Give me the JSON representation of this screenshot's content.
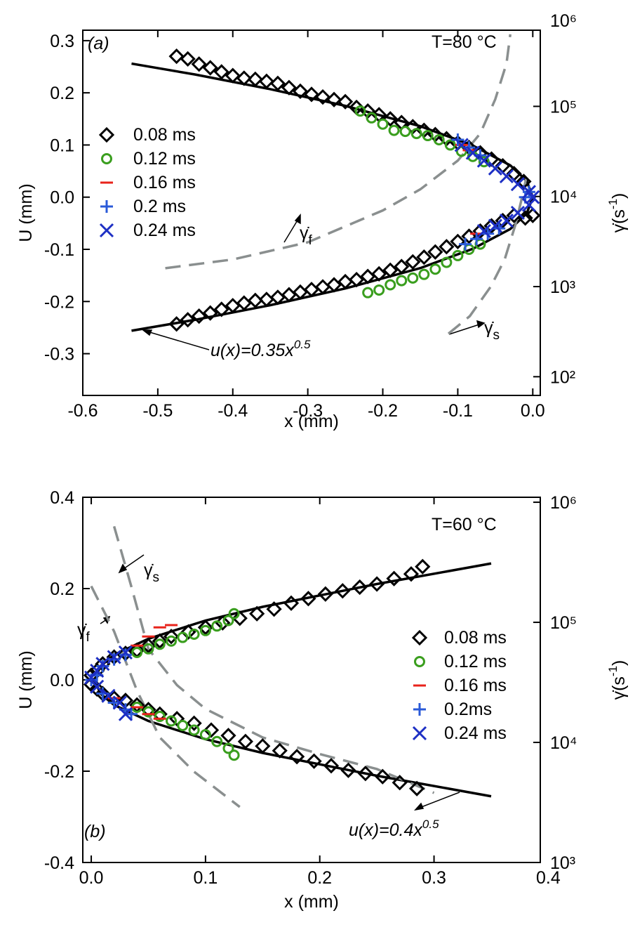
{
  "chart_data": [
    {
      "type": "scatter",
      "xlabel": "x (mm)",
      "ylabel": "U (mm)",
      "y2label": {
        "base": "γ̇(s",
        "sup": "-1",
        "tail": ")"
      },
      "xlim": [
        -0.6,
        0.01
      ],
      "ylim": [
        -0.38,
        0.32
      ],
      "y2lim": [
        62,
        700000
      ],
      "y2log": true,
      "legend": "upper left",
      "xticks": [
        -0.6,
        -0.5,
        -0.4,
        -0.3,
        -0.2,
        -0.1,
        {
          "value": 0,
          "label": "0.0"
        }
      ],
      "yticks": [
        -0.3,
        -0.2,
        -0.1,
        {
          "value": 0,
          "label": "0.0"
        },
        0.1,
        0.2,
        0.3
      ],
      "y2ticks": [
        {
          "value": 100,
          "label": "10²"
        },
        {
          "value": 1000,
          "label": "10³"
        },
        {
          "value": 10000,
          "label": "10⁴"
        },
        {
          "value": 100000,
          "label": "10⁵"
        },
        {
          "value": 1000000,
          "label": "10⁶"
        }
      ],
      "annotations": [
        {
          "base": "(a)"
        },
        {
          "base": "T=80 °C"
        },
        {
          "base": "u(x)=0.35x",
          "sup": "0.5"
        },
        {
          "base": "γ̇",
          "sub": "f"
        },
        {
          "base": "γ̇",
          "sub": "s"
        }
      ],
      "series": [
        {
          "name": "0.08 ms",
          "color": "#000000",
          "marker": "diamond",
          "x": [
            -0.475,
            -0.46,
            -0.445,
            -0.43,
            -0.415,
            -0.4,
            -0.385,
            -0.37,
            -0.355,
            -0.34,
            -0.325,
            -0.31,
            -0.295,
            -0.28,
            -0.265,
            -0.25,
            -0.235,
            -0.22,
            -0.205,
            -0.19,
            -0.175,
            -0.16,
            -0.145,
            -0.13,
            -0.115,
            -0.1,
            -0.085,
            -0.07,
            -0.055,
            -0.04,
            -0.025,
            -0.012,
            -0.475,
            -0.46,
            -0.445,
            -0.43,
            -0.415,
            -0.4,
            -0.385,
            -0.37,
            -0.355,
            -0.34,
            -0.325,
            -0.31,
            -0.295,
            -0.28,
            -0.265,
            -0.25,
            -0.235,
            -0.22,
            -0.205,
            -0.19,
            -0.175,
            -0.16,
            -0.145,
            -0.13,
            -0.115,
            -0.1,
            -0.085,
            -0.07,
            -0.055,
            -0.04,
            -0.025,
            -0.01,
            0
          ],
          "y": [
            0.27,
            0.265,
            0.255,
            0.248,
            0.24,
            0.233,
            0.228,
            0.226,
            0.222,
            0.218,
            0.21,
            0.203,
            0.197,
            0.192,
            0.187,
            0.183,
            0.172,
            0.165,
            0.158,
            0.15,
            0.143,
            0.135,
            0.128,
            0.12,
            0.112,
            0.104,
            0.095,
            0.085,
            0.073,
            0.06,
            0.045,
            0.03,
            -0.243,
            -0.235,
            -0.228,
            -0.222,
            -0.215,
            -0.208,
            -0.203,
            -0.198,
            -0.196,
            -0.192,
            -0.187,
            -0.182,
            -0.177,
            -0.172,
            -0.168,
            -0.162,
            -0.158,
            -0.152,
            -0.147,
            -0.14,
            -0.133,
            -0.124,
            -0.115,
            -0.105,
            -0.095,
            -0.085,
            -0.075,
            -0.065,
            -0.055,
            -0.045,
            -0.035,
            -0.04,
            -0.035
          ]
        },
        {
          "name": "0.12 ms",
          "color": "#3a9e1e",
          "marker": "circle",
          "x": [
            -0.23,
            -0.215,
            -0.2,
            -0.185,
            -0.17,
            -0.155,
            -0.14,
            -0.125,
            -0.11,
            -0.095,
            -0.08,
            -0.065,
            -0.22,
            -0.205,
            -0.19,
            -0.175,
            -0.16,
            -0.145,
            -0.13,
            -0.115,
            -0.1,
            -0.085,
            -0.07
          ],
          "y": [
            0.165,
            0.152,
            0.14,
            0.128,
            0.126,
            0.122,
            0.118,
            0.11,
            0.1,
            0.088,
            0.078,
            0.068,
            -0.183,
            -0.178,
            -0.168,
            -0.16,
            -0.155,
            -0.148,
            -0.138,
            -0.125,
            -0.112,
            -0.1,
            -0.09
          ]
        },
        {
          "name": "0.16 ms",
          "color": "#e8231b",
          "marker": "dash",
          "x": [
            -0.095,
            -0.085,
            -0.075
          ],
          "y": [
            0.1,
            0.09,
            -0.07
          ]
        },
        {
          "name": "0.2 ms",
          "color": "#2a5ad8",
          "marker": "plus",
          "x": [
            -0.1,
            -0.085,
            -0.07,
            -0.09,
            -0.075,
            -0.06,
            -0.045,
            -0.01,
            -0.005
          ],
          "y": [
            0.11,
            0.095,
            0.08,
            -0.09,
            -0.08,
            -0.07,
            -0.06,
            0,
            0.01
          ]
        },
        {
          "name": "0.24 ms",
          "color": "#1d2fc4",
          "marker": "x",
          "x": [
            -0.095,
            -0.08,
            -0.065,
            -0.05,
            -0.035,
            -0.02,
            -0.005,
            0,
            -0.005,
            -0.02,
            -0.035,
            -0.05,
            -0.065
          ],
          "y": [
            0.1,
            0.085,
            0.07,
            0.055,
            0.04,
            0.025,
            0.01,
            0,
            -0.015,
            -0.03,
            -0.045,
            -0.055,
            -0.065
          ]
        }
      ],
      "curves": [
        {
          "color": "#000000",
          "dashed": false,
          "x": [
            -0.535,
            -0.45,
            -0.35,
            -0.25,
            -0.15,
            -0.08,
            -0.03,
            -0.008,
            0,
            -0.008,
            -0.03,
            -0.08,
            -0.15,
            -0.25,
            -0.35,
            -0.45,
            -0.535
          ],
          "y": [
            0.256,
            0.235,
            0.207,
            0.175,
            0.136,
            0.099,
            0.061,
            0.031,
            0,
            -0.031,
            -0.061,
            -0.099,
            -0.136,
            -0.175,
            -0.207,
            -0.235,
            -0.256
          ]
        },
        {
          "color": "#8a8f8f",
          "dashed": true,
          "axis": "y2",
          "x": [
            -0.49,
            -0.4,
            -0.3,
            -0.2,
            -0.15,
            -0.1,
            -0.07,
            -0.05,
            -0.035,
            -0.03
          ],
          "y": [
            1600,
            2000,
            3100,
            7000,
            12000,
            25000,
            50000,
            120000,
            300000,
            630000
          ]
        },
        {
          "color": "#8a8f8f",
          "dashed": true,
          "axis": "y2",
          "x": [
            -0.1125,
            -0.084,
            -0.056,
            -0.0375,
            -0.023,
            -0.014,
            -0.009
          ],
          "y": [
            300,
            470,
            1000,
            2000,
            4900,
            10000,
            15700
          ]
        }
      ]
    },
    {
      "type": "scatter",
      "xlabel": "x (mm)",
      "ylabel": "U (mm)",
      "y2label": {
        "base": "γ̇(s",
        "sup": "-1",
        "tail": ")"
      },
      "xlim": [
        -0.0074,
        0.393
      ],
      "ylim": [
        -0.4,
        0.4
      ],
      "y2lim": [
        1000,
        1100000
      ],
      "y2log": true,
      "legend": "center right",
      "xticks": [
        {
          "value": 0,
          "label": "0.0"
        },
        0.1,
        0.2,
        0.3,
        0.4
      ],
      "yticks": [
        -0.4,
        -0.2,
        {
          "value": 0,
          "label": "0.0"
        },
        0.2,
        0.4
      ],
      "y2ticks": [
        {
          "value": 1000,
          "label": "10³"
        },
        {
          "value": 10000,
          "label": "10⁴"
        },
        {
          "value": 100000,
          "label": "10⁵"
        },
        {
          "value": 1000000,
          "label": "10⁶"
        }
      ],
      "annotations": [
        {
          "base": "(b)"
        },
        {
          "base": "T=60 °C"
        },
        {
          "base": "u(x)=0.4x",
          "sup": "0.5"
        },
        {
          "base": "γ̇",
          "sub": "s"
        },
        {
          "base": "γ̇",
          "sub": "f"
        }
      ],
      "series": [
        {
          "name": "0.08 ms",
          "color": "#000000",
          "marker": "diamond",
          "x": [
            0,
            0.005,
            0.01,
            0.02,
            0.03,
            0.04,
            0.05,
            0.06,
            0.07,
            0.085,
            0.1,
            0.115,
            0.13,
            0.145,
            0.16,
            0.175,
            0.19,
            0.205,
            0.22,
            0.235,
            0.25,
            0.265,
            0.28,
            0.29,
            0,
            0.005,
            0.01,
            0.02,
            0.03,
            0.04,
            0.05,
            0.06,
            0.075,
            0.09,
            0.105,
            0.12,
            0.135,
            0.15,
            0.165,
            0.18,
            0.195,
            0.21,
            0.225,
            0.24,
            0.255,
            0.27,
            0.285
          ],
          "y": [
            0.01,
            0.02,
            0.035,
            0.05,
            0.058,
            0.065,
            0.075,
            0.085,
            0.095,
            0.105,
            0.115,
            0.125,
            0.135,
            0.145,
            0.155,
            0.168,
            0.178,
            0.188,
            0.195,
            0.203,
            0.21,
            0.222,
            0.232,
            0.248,
            -0.01,
            -0.02,
            -0.03,
            -0.04,
            -0.045,
            -0.055,
            -0.065,
            -0.075,
            -0.085,
            -0.095,
            -0.11,
            -0.122,
            -0.135,
            -0.145,
            -0.155,
            -0.168,
            -0.178,
            -0.188,
            -0.198,
            -0.205,
            -0.212,
            -0.225,
            -0.238
          ]
        },
        {
          "name": "0.12 ms",
          "color": "#3a9e1e",
          "marker": "circle",
          "x": [
            0.04,
            0.05,
            0.06,
            0.07,
            0.08,
            0.09,
            0.1,
            0.11,
            0.12,
            0.125,
            0.04,
            0.05,
            0.06,
            0.07,
            0.08,
            0.09,
            0.1,
            0.11,
            0.12,
            0.125
          ],
          "y": [
            0.06,
            0.068,
            0.078,
            0.085,
            0.093,
            0.1,
            0.108,
            0.118,
            0.13,
            0.145,
            -0.06,
            -0.07,
            -0.08,
            -0.09,
            -0.1,
            -0.11,
            -0.12,
            -0.135,
            -0.15,
            -0.165
          ]
        },
        {
          "name": "0.16 ms",
          "color": "#e8231b",
          "marker": "dash",
          "x": [
            0.02,
            0.04,
            0.05,
            0.06,
            0.07,
            0.02,
            0.04,
            0.05,
            0.06
          ],
          "y": [
            0.045,
            0.075,
            0.095,
            0.115,
            0.12,
            -0.04,
            -0.06,
            -0.075,
            -0.085
          ]
        },
        {
          "name": "0.2ms",
          "color": "#2a5ad8",
          "marker": "plus",
          "x": [
            0,
            0.005,
            0.01,
            0.02,
            0.03,
            0.01,
            0.02,
            0.03,
            0.035
          ],
          "y": [
            0,
            0.01,
            0.03,
            0.045,
            0.055,
            -0.03,
            -0.05,
            -0.065,
            -0.075
          ]
        },
        {
          "name": "0.24 ms",
          "color": "#1d2fc4",
          "marker": "x",
          "x": [
            0,
            0.005,
            0.01,
            0.02,
            0.03,
            0.005,
            0.015,
            0.025,
            0.03
          ],
          "y": [
            0.005,
            0.02,
            0.035,
            0.05,
            0.06,
            -0.015,
            -0.035,
            -0.05,
            -0.075
          ]
        }
      ],
      "curves": [
        {
          "color": "#000000",
          "dashed": false,
          "x": [
            0.35,
            0.25,
            0.15,
            0.1,
            0.05,
            0.02,
            0.008,
            0.003,
            0.008,
            0.02,
            0.05,
            0.1,
            0.15,
            0.25,
            0.35
          ],
          "y": [
            0.255,
            0.21,
            0.16,
            0.13,
            0.09,
            0.055,
            0.03,
            0,
            -0.03,
            -0.055,
            -0.09,
            -0.13,
            -0.16,
            -0.21,
            -0.255
          ]
        },
        {
          "color": "#8a8f8f",
          "dashed": true,
          "axis": "y2",
          "x": [
            0.02,
            0.035,
            0.05,
            0.075,
            0.1,
            0.15,
            0.2,
            0.25,
            0.3
          ],
          "y": [
            630000,
            200000,
            60000,
            30000,
            19000,
            11000,
            8000,
            6000,
            3800
          ]
        },
        {
          "color": "#8a8f8f",
          "dashed": true,
          "axis": "y2",
          "x": [
            0,
            0.02,
            0.04,
            0.06,
            0.09,
            0.13
          ],
          "y": [
            200000,
            84000,
            27000,
            11000,
            5700,
            2900
          ]
        }
      ]
    }
  ]
}
